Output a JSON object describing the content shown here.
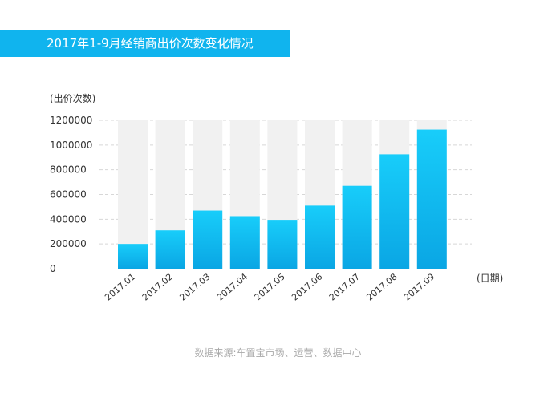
{
  "title": "2017年1-9月经销商出价次数变化情况",
  "source": "数据来源:车置宝市场、运营、数据中心",
  "colors": {
    "accent": "#10b4ee",
    "bar_top": "#18cdfa",
    "bar_bottom": "#0aa6e4",
    "bar_background": "#f1f1f1",
    "grid": "#d7d7d7"
  },
  "chart_data": {
    "type": "bar",
    "title": "2017年1-9月经销商出价次数变化情况",
    "ylabel": "(出价次数)",
    "xlabel": "(日期)",
    "categories": [
      "2017.01",
      "2017.02",
      "2017.03",
      "2017.04",
      "2017.05",
      "2017.06",
      "2017.07",
      "2017.08",
      "2017.09"
    ],
    "values": [
      200000,
      310000,
      470000,
      425000,
      395000,
      510000,
      670000,
      925000,
      1125000
    ],
    "ylim": [
      0,
      1200000
    ],
    "yticks": [
      0,
      200000,
      400000,
      600000,
      800000,
      1000000,
      1200000
    ],
    "grid": true,
    "legend": "none"
  }
}
